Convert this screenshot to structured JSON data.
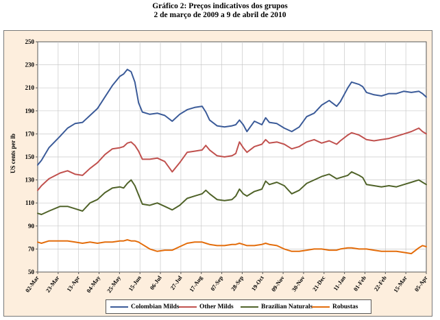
{
  "title_line1": "Gráfico 2:  Preços indicativos dos grupos",
  "title_line2": "2 de março de 2009 a 9 de abril de 2010",
  "chart_data": {
    "type": "line",
    "title": "Gráfico 2:  Preços indicativos dos grupos — 2 de março de 2009 a 9 de abril de 2010",
    "xlabel": "",
    "ylabel": "US cents per lb",
    "ylim": [
      50,
      250
    ],
    "yticks": [
      50,
      70,
      90,
      110,
      130,
      150,
      170,
      190,
      210,
      230,
      250
    ],
    "grid": true,
    "legend_position": "bottom",
    "categories": [
      "02-Mar",
      "23-Mar",
      "13-Apr",
      "04-May",
      "25-May",
      "15-Jun",
      "06-Jul",
      "27-Jul",
      "17-Aug",
      "07-Sep",
      "28-Sep",
      "19-Oct",
      "09-Nov",
      "30-Nov",
      "21-Dec",
      "11-Jan",
      "01-Feb",
      "22-Feb",
      "15-Mar",
      "05-Apr"
    ],
    "series": [
      {
        "name": "Colombian Milds",
        "color": "#3a5a98",
        "values": [
          [
            0,
            143
          ],
          [
            1,
            147
          ],
          [
            3,
            158
          ],
          [
            6,
            168
          ],
          [
            8,
            175
          ],
          [
            10,
            179
          ],
          [
            12,
            180
          ],
          [
            14,
            186
          ],
          [
            16,
            192
          ],
          [
            18,
            202
          ],
          [
            20,
            212
          ],
          [
            22,
            220
          ],
          [
            23,
            222
          ],
          [
            24,
            226
          ],
          [
            25,
            224
          ],
          [
            26,
            215
          ],
          [
            27,
            197
          ],
          [
            28,
            189
          ],
          [
            30,
            187
          ],
          [
            32,
            188
          ],
          [
            34,
            186
          ],
          [
            36,
            181
          ],
          [
            38,
            187
          ],
          [
            40,
            191
          ],
          [
            42,
            193
          ],
          [
            44,
            194
          ],
          [
            45,
            189
          ],
          [
            46,
            182
          ],
          [
            48,
            177
          ],
          [
            50,
            176
          ],
          [
            52,
            177
          ],
          [
            53,
            178
          ],
          [
            54,
            182
          ],
          [
            55,
            178
          ],
          [
            56,
            172
          ],
          [
            58,
            181
          ],
          [
            60,
            178
          ],
          [
            61,
            184
          ],
          [
            62,
            180
          ],
          [
            64,
            179
          ],
          [
            66,
            175
          ],
          [
            68,
            172
          ],
          [
            70,
            176
          ],
          [
            72,
            185
          ],
          [
            74,
            188
          ],
          [
            76,
            195
          ],
          [
            78,
            199
          ],
          [
            80,
            194
          ],
          [
            81,
            198
          ],
          [
            83,
            210
          ],
          [
            84,
            215
          ],
          [
            86,
            213
          ],
          [
            87,
            211
          ],
          [
            88,
            206
          ],
          [
            90,
            204
          ],
          [
            92,
            203
          ],
          [
            94,
            205
          ],
          [
            96,
            205
          ],
          [
            98,
            207
          ],
          [
            100,
            206
          ],
          [
            102,
            207
          ],
          [
            103,
            205
          ],
          [
            104,
            202
          ]
        ]
      },
      {
        "name": "Other Milds",
        "color": "#c0504d",
        "values": [
          [
            0,
            121
          ],
          [
            1,
            125
          ],
          [
            3,
            131
          ],
          [
            6,
            136
          ],
          [
            8,
            138
          ],
          [
            10,
            135
          ],
          [
            12,
            134
          ],
          [
            14,
            140
          ],
          [
            16,
            145
          ],
          [
            18,
            152
          ],
          [
            20,
            157
          ],
          [
            22,
            158
          ],
          [
            23,
            159
          ],
          [
            24,
            162
          ],
          [
            25,
            163
          ],
          [
            26,
            160
          ],
          [
            27,
            155
          ],
          [
            28,
            148
          ],
          [
            30,
            148
          ],
          [
            32,
            149
          ],
          [
            34,
            146
          ],
          [
            36,
            137
          ],
          [
            38,
            145
          ],
          [
            40,
            154
          ],
          [
            42,
            155
          ],
          [
            44,
            156
          ],
          [
            45,
            160
          ],
          [
            46,
            156
          ],
          [
            48,
            151
          ],
          [
            50,
            150
          ],
          [
            52,
            151
          ],
          [
            53,
            153
          ],
          [
            54,
            163
          ],
          [
            55,
            158
          ],
          [
            56,
            154
          ],
          [
            58,
            159
          ],
          [
            60,
            161
          ],
          [
            61,
            165
          ],
          [
            62,
            162
          ],
          [
            64,
            163
          ],
          [
            66,
            161
          ],
          [
            68,
            157
          ],
          [
            70,
            159
          ],
          [
            72,
            163
          ],
          [
            74,
            165
          ],
          [
            76,
            162
          ],
          [
            78,
            164
          ],
          [
            80,
            161
          ],
          [
            81,
            164
          ],
          [
            83,
            169
          ],
          [
            84,
            171
          ],
          [
            86,
            169
          ],
          [
            87,
            167
          ],
          [
            88,
            165
          ],
          [
            90,
            164
          ],
          [
            92,
            165
          ],
          [
            94,
            166
          ],
          [
            96,
            168
          ],
          [
            98,
            170
          ],
          [
            100,
            172
          ],
          [
            102,
            175
          ],
          [
            103,
            172
          ],
          [
            104,
            170
          ]
        ]
      },
      {
        "name": "Brazilian Naturals",
        "color": "#4f6228",
        "values": [
          [
            0,
            101
          ],
          [
            1,
            100
          ],
          [
            3,
            103
          ],
          [
            6,
            107
          ],
          [
            8,
            107
          ],
          [
            10,
            105
          ],
          [
            12,
            103
          ],
          [
            14,
            110
          ],
          [
            16,
            113
          ],
          [
            18,
            119
          ],
          [
            20,
            123
          ],
          [
            22,
            124
          ],
          [
            23,
            123
          ],
          [
            24,
            127
          ],
          [
            25,
            130
          ],
          [
            26,
            125
          ],
          [
            27,
            117
          ],
          [
            28,
            109
          ],
          [
            30,
            108
          ],
          [
            32,
            110
          ],
          [
            34,
            107
          ],
          [
            36,
            104
          ],
          [
            38,
            108
          ],
          [
            40,
            114
          ],
          [
            42,
            116
          ],
          [
            44,
            118
          ],
          [
            45,
            121
          ],
          [
            46,
            118
          ],
          [
            48,
            113
          ],
          [
            50,
            112
          ],
          [
            52,
            113
          ],
          [
            53,
            116
          ],
          [
            54,
            122
          ],
          [
            55,
            118
          ],
          [
            56,
            116
          ],
          [
            58,
            120
          ],
          [
            60,
            122
          ],
          [
            61,
            129
          ],
          [
            62,
            126
          ],
          [
            64,
            128
          ],
          [
            66,
            125
          ],
          [
            68,
            118
          ],
          [
            70,
            121
          ],
          [
            72,
            127
          ],
          [
            74,
            130
          ],
          [
            76,
            133
          ],
          [
            78,
            135
          ],
          [
            80,
            131
          ],
          [
            81,
            132
          ],
          [
            83,
            134
          ],
          [
            84,
            137
          ],
          [
            86,
            134
          ],
          [
            87,
            132
          ],
          [
            88,
            126
          ],
          [
            90,
            125
          ],
          [
            92,
            124
          ],
          [
            94,
            125
          ],
          [
            96,
            124
          ],
          [
            98,
            126
          ],
          [
            100,
            128
          ],
          [
            102,
            130
          ],
          [
            103,
            128
          ],
          [
            104,
            126
          ]
        ]
      },
      {
        "name": "Robustas",
        "color": "#e36c0a",
        "values": [
          [
            0,
            76
          ],
          [
            1,
            75
          ],
          [
            3,
            77
          ],
          [
            6,
            77
          ],
          [
            8,
            77
          ],
          [
            10,
            76
          ],
          [
            12,
            75
          ],
          [
            14,
            76
          ],
          [
            16,
            75
          ],
          [
            18,
            76
          ],
          [
            20,
            76
          ],
          [
            22,
            77
          ],
          [
            23,
            77
          ],
          [
            24,
            78
          ],
          [
            25,
            77
          ],
          [
            26,
            77
          ],
          [
            27,
            76
          ],
          [
            28,
            74
          ],
          [
            30,
            70
          ],
          [
            32,
            68
          ],
          [
            34,
            69
          ],
          [
            36,
            69
          ],
          [
            38,
            72
          ],
          [
            40,
            75
          ],
          [
            42,
            76
          ],
          [
            44,
            76
          ],
          [
            45,
            75
          ],
          [
            46,
            74
          ],
          [
            48,
            73
          ],
          [
            50,
            73
          ],
          [
            52,
            74
          ],
          [
            53,
            74
          ],
          [
            54,
            75
          ],
          [
            55,
            74
          ],
          [
            56,
            73
          ],
          [
            58,
            73
          ],
          [
            60,
            74
          ],
          [
            61,
            75
          ],
          [
            62,
            74
          ],
          [
            64,
            73
          ],
          [
            66,
            70
          ],
          [
            68,
            68
          ],
          [
            70,
            68
          ],
          [
            72,
            69
          ],
          [
            74,
            70
          ],
          [
            76,
            70
          ],
          [
            78,
            69
          ],
          [
            80,
            69
          ],
          [
            81,
            70
          ],
          [
            83,
            71
          ],
          [
            84,
            71
          ],
          [
            86,
            70
          ],
          [
            87,
            70
          ],
          [
            88,
            70
          ],
          [
            90,
            69
          ],
          [
            92,
            68
          ],
          [
            94,
            68
          ],
          [
            96,
            68
          ],
          [
            98,
            67
          ],
          [
            100,
            66
          ],
          [
            102,
            71
          ],
          [
            103,
            73
          ],
          [
            104,
            72
          ]
        ]
      }
    ]
  }
}
